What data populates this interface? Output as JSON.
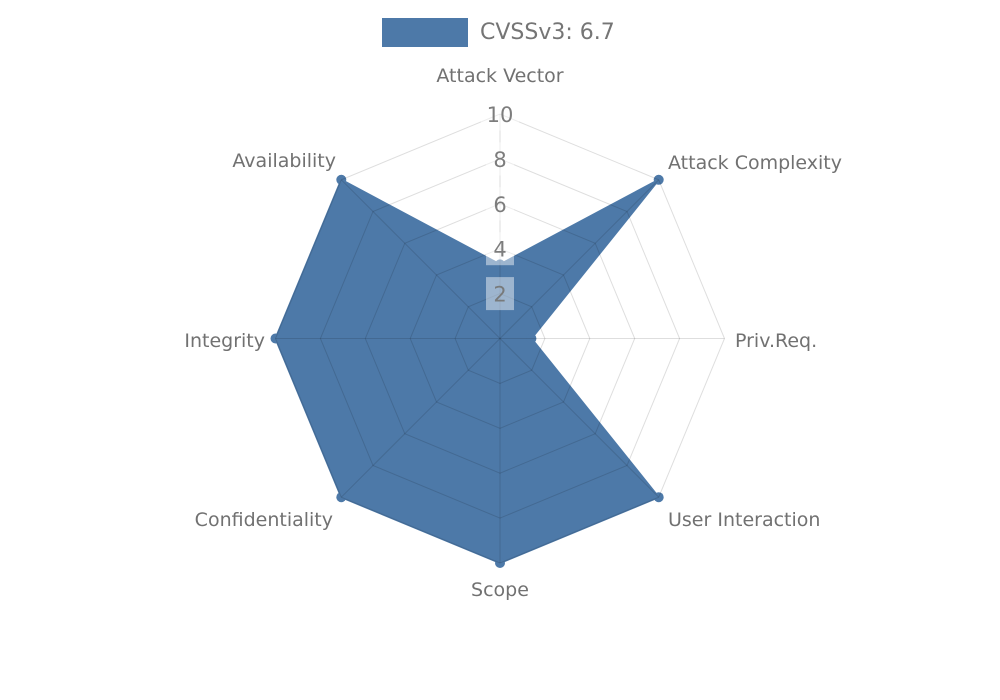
{
  "legend": {
    "label": "CVSSv3: 6.7",
    "swatch_color": "#4D79A8"
  },
  "chart_data": {
    "type": "radar",
    "axes": [
      "Attack Vector",
      "Attack Complexity",
      "Priv.Req.",
      "User Interaction",
      "Scope",
      "Confidentiality",
      "Integrity",
      "Availability"
    ],
    "series": [
      {
        "name": "CVSSv3: 6.7",
        "values": [
          3.3,
          10,
          1.4,
          10,
          10,
          10,
          10,
          10
        ]
      }
    ],
    "rlim": [
      0,
      10
    ],
    "ticks": [
      2,
      4,
      6,
      8,
      10
    ],
    "grid": true,
    "legend_position": "top-center",
    "colors": {
      "fill": "#4D79A8",
      "grid": "rgba(0,0,0,0.13)",
      "label": "#717171",
      "tick": "#777777",
      "tick_box": "rgba(255,255,255,0.45)"
    }
  }
}
